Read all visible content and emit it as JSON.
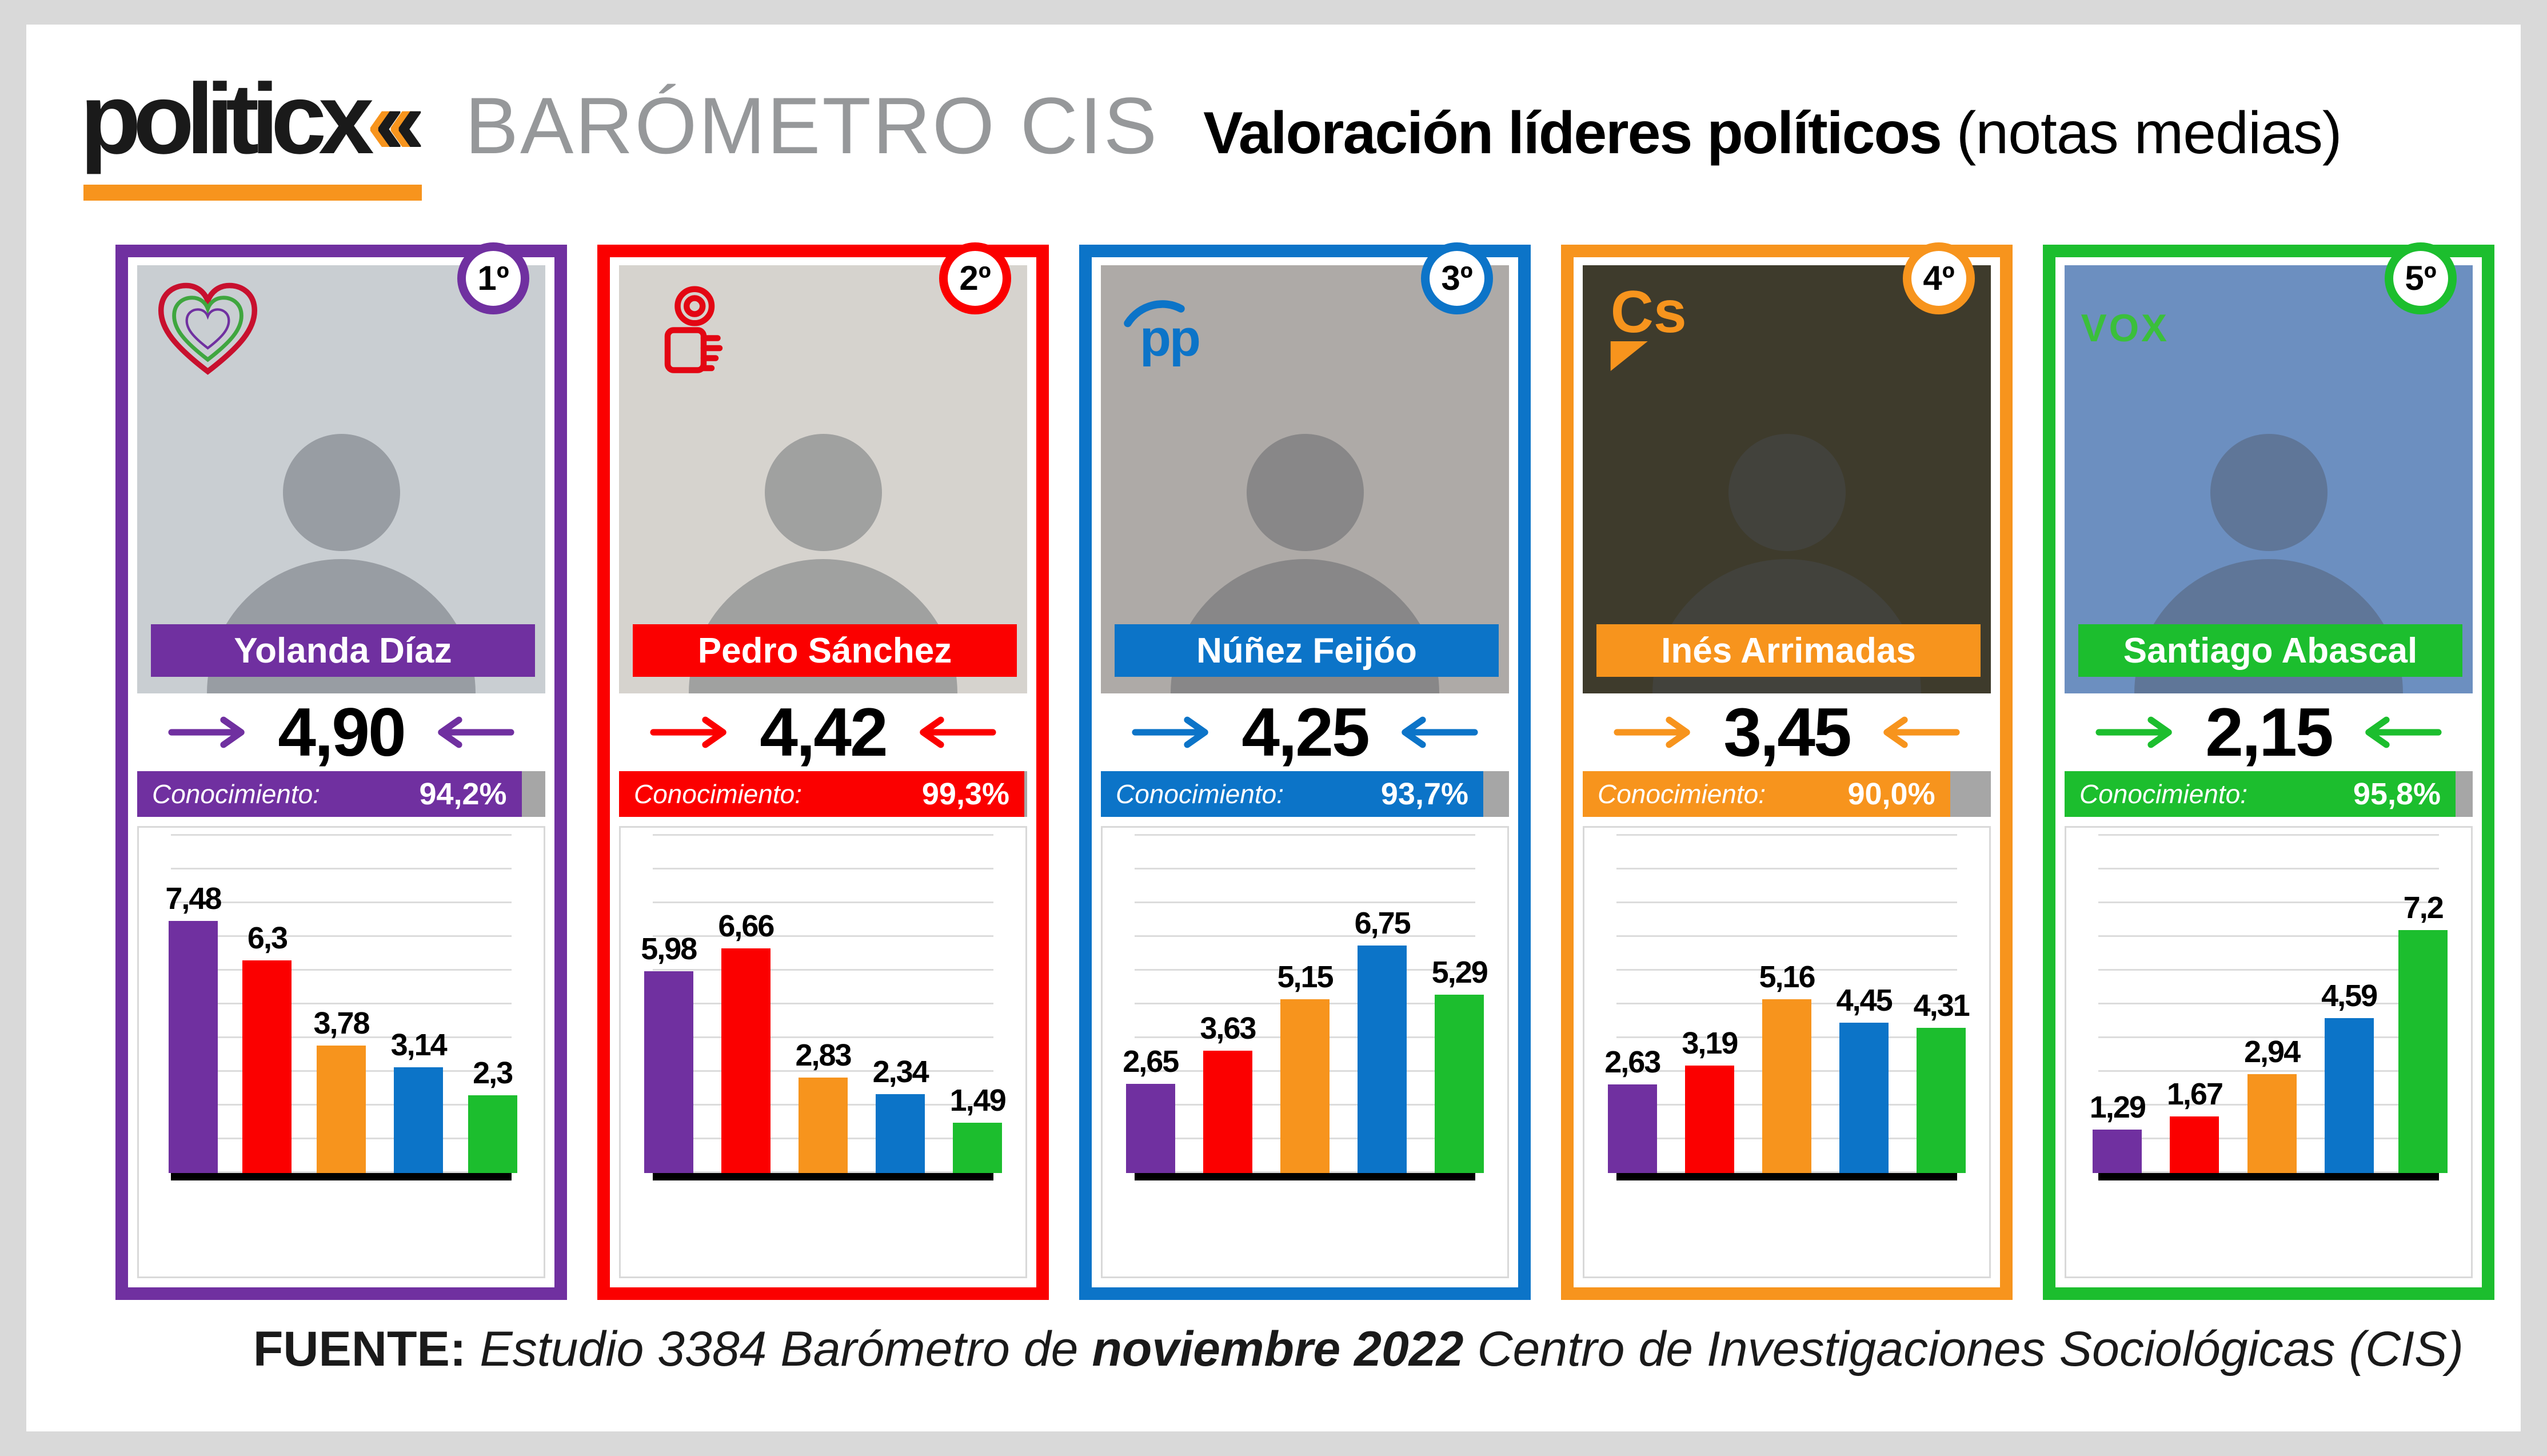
{
  "colors": {
    "page_bg": "#D9D9D9",
    "canvas_bg": "#FFFFFF",
    "logo_black": "#1A1A1A",
    "logo_accent_orange": "#F7941D",
    "kicker_gray": "#96989A",
    "known_rest_gray": "#A6A6A6",
    "gridline_gray": "#DCDCDC",
    "chart_border_gray": "#D9D9D9"
  },
  "bar_colors": [
    "#7030A0",
    "#FB0000",
    "#F7941D",
    "#0C74C8",
    "#1CBE2E"
  ],
  "header": {
    "logo": "politicx",
    "logo_mark": "«",
    "kicker": "BARÓMETRO CIS",
    "title": "Valoración líderes políticos",
    "title_suffix": "(notas medias)"
  },
  "cards": [
    {
      "rank": "1º",
      "name": "Yolanda Díaz",
      "party_logo": "sumar-heart",
      "score": "4,90",
      "conocimiento_label": "Conocimiento:",
      "conocimiento": "94,2%",
      "conocimiento_pct": 94.2,
      "accent": "#7030A0",
      "photo_bg": "#C9CED2",
      "chart": {
        "values": [
          7.48,
          6.3,
          3.78,
          3.14,
          2.3
        ],
        "labels": [
          "7,48",
          "6,3",
          "3,78",
          "3,14",
          "2,3"
        ]
      }
    },
    {
      "rank": "2º",
      "name": "Pedro Sánchez",
      "party_logo": "psoe-rose-fist",
      "score": "4,42",
      "conocimiento_label": "Conocimiento:",
      "conocimiento": "99,3%",
      "conocimiento_pct": 99.3,
      "accent": "#FB0000",
      "photo_bg": "#D6D3CE",
      "chart": {
        "values": [
          5.98,
          6.66,
          2.83,
          2.34,
          1.49
        ],
        "labels": [
          "5,98",
          "6,66",
          "2,83",
          "2,34",
          "1,49"
        ]
      }
    },
    {
      "rank": "3º",
      "name": "Núñez Feijóo",
      "party_logo": "pp-gull",
      "logo_text": "pp",
      "score": "4,25",
      "conocimiento_label": "Conocimiento:",
      "conocimiento": "93,7%",
      "conocimiento_pct": 93.7,
      "accent": "#0C74C8",
      "photo_bg": "#AEAAA7",
      "chart": {
        "values": [
          2.65,
          3.63,
          5.15,
          6.75,
          5.29
        ],
        "labels": [
          "2,65",
          "3,63",
          "5,15",
          "6,75",
          "5,29"
        ]
      }
    },
    {
      "rank": "4º",
      "name": "Inés Arrimadas",
      "party_logo": "ciudadanos-cs",
      "logo_text": "Cs",
      "score": "3,45",
      "conocimiento_label": "Conocimiento:",
      "conocimiento": "90,0%",
      "conocimiento_pct": 90.0,
      "accent": "#F7941D",
      "photo_bg": "#3E3B2C",
      "chart": {
        "values": [
          2.63,
          3.19,
          5.16,
          4.45,
          4.31
        ],
        "labels": [
          "2,63",
          "3,19",
          "5,16",
          "4,45",
          "4,31"
        ]
      }
    },
    {
      "rank": "5º",
      "name": "Santiago Abascal",
      "party_logo": "vox-wordmark",
      "logo_text": "VOX",
      "score": "2,15",
      "conocimiento_label": "Conocimiento:",
      "conocimiento": "95,8%",
      "conocimiento_pct": 95.8,
      "accent": "#1CBE2E",
      "photo_bg": "#6C8FC0",
      "chart": {
        "values": [
          1.29,
          1.67,
          2.94,
          4.59,
          7.2
        ],
        "labels": [
          "1,29",
          "1,67",
          "2,94",
          "4,59",
          "7,2"
        ]
      }
    }
  ],
  "footer": {
    "label": "FUENTE:",
    "pre": "Estudio 3384 Barómetro de",
    "strong": "noviembre 2022",
    "post": "Centro de Investigaciones Sociológicas (CIS)"
  },
  "chart_data": [
    {
      "type": "bar",
      "title": "Yolanda Díaz",
      "values": [
        7.48,
        6.3,
        3.78,
        3.14,
        2.3
      ],
      "value_labels": [
        "7,48",
        "6,3",
        "3,78",
        "3,14",
        "2,3"
      ],
      "bar_colors": [
        "#7030A0",
        "#FB0000",
        "#F7941D",
        "#0C74C8",
        "#1CBE2E"
      ],
      "ylim": [
        0,
        10
      ],
      "grid": true,
      "xlabel": "",
      "ylabel": ""
    },
    {
      "type": "bar",
      "title": "Pedro Sánchez",
      "values": [
        5.98,
        6.66,
        2.83,
        2.34,
        1.49
      ],
      "value_labels": [
        "5,98",
        "6,66",
        "2,83",
        "2,34",
        "1,49"
      ],
      "bar_colors": [
        "#7030A0",
        "#FB0000",
        "#F7941D",
        "#0C74C8",
        "#1CBE2E"
      ],
      "ylim": [
        0,
        10
      ],
      "grid": true,
      "xlabel": "",
      "ylabel": ""
    },
    {
      "type": "bar",
      "title": "Núñez Feijóo",
      "values": [
        2.65,
        3.63,
        5.15,
        6.75,
        5.29
      ],
      "value_labels": [
        "2,65",
        "3,63",
        "5,15",
        "6,75",
        "5,29"
      ],
      "bar_colors": [
        "#7030A0",
        "#FB0000",
        "#F7941D",
        "#0C74C8",
        "#1CBE2E"
      ],
      "ylim": [
        0,
        10
      ],
      "grid": true,
      "xlabel": "",
      "ylabel": ""
    },
    {
      "type": "bar",
      "title": "Inés Arrimadas",
      "values": [
        2.63,
        3.19,
        5.16,
        4.45,
        4.31
      ],
      "value_labels": [
        "2,63",
        "3,19",
        "5,16",
        "4,45",
        "4,31"
      ],
      "bar_colors": [
        "#7030A0",
        "#FB0000",
        "#F7941D",
        "#0C74C8",
        "#1CBE2E"
      ],
      "ylim": [
        0,
        10
      ],
      "grid": true,
      "xlabel": "",
      "ylabel": ""
    },
    {
      "type": "bar",
      "title": "Santiago Abascal",
      "values": [
        1.29,
        1.67,
        2.94,
        4.59,
        7.2
      ],
      "value_labels": [
        "1,29",
        "1,67",
        "2,94",
        "4,59",
        "7,2"
      ],
      "bar_colors": [
        "#7030A0",
        "#FB0000",
        "#F7941D",
        "#0C74C8",
        "#1CBE2E"
      ],
      "ylim": [
        0,
        10
      ],
      "grid": true,
      "xlabel": "",
      "ylabel": ""
    }
  ]
}
